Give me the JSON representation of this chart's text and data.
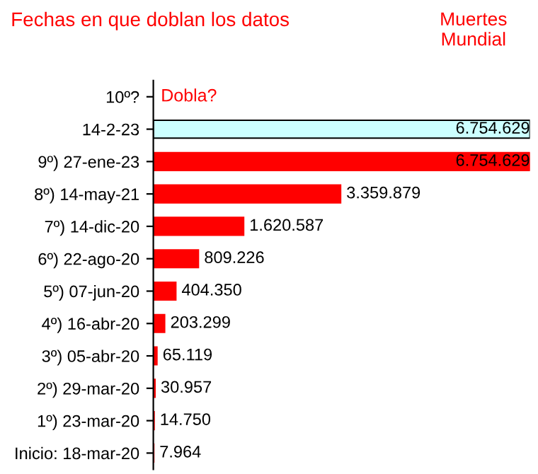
{
  "chart_data": {
    "type": "bar",
    "orientation": "horizontal",
    "title": "Fechas en que doblan los datos",
    "subtitle": "Muertes\nMundial",
    "categories": [
      "10º?",
      "14-2-23",
      "9º) 27-ene-23",
      "8º) 14-may-21",
      "7º) 14-dic-20",
      "6º) 22-ago-20",
      "5º) 07-jun-20",
      "4º) 16-abr-20",
      "3º) 05-abr-20",
      "2º) 29-mar-20",
      "1º) 23-mar-20",
      "Inicio: 18-mar-20"
    ],
    "values": [
      null,
      6754629,
      6754629,
      3359879,
      1620587,
      809226,
      404350,
      203299,
      65119,
      30957,
      14750,
      7964
    ],
    "colors": [
      "#ff0000",
      "#ccffff",
      "#ff0000",
      "#ff0000",
      "#ff0000",
      "#ff0000",
      "#ff0000",
      "#ff0000",
      "#ff0000",
      "#ff0000",
      "#ff0000",
      "#ff0000"
    ],
    "value_labels": [
      null,
      "6.754.629",
      "6.754.629",
      "3.359.879",
      "1.620.587",
      "809.226",
      "404.350",
      "203.299",
      "65.119",
      "30.957",
      "14.750",
      "7.964"
    ],
    "annotations": [
      "Dobla?"
    ],
    "grid": false,
    "legend": false
  }
}
